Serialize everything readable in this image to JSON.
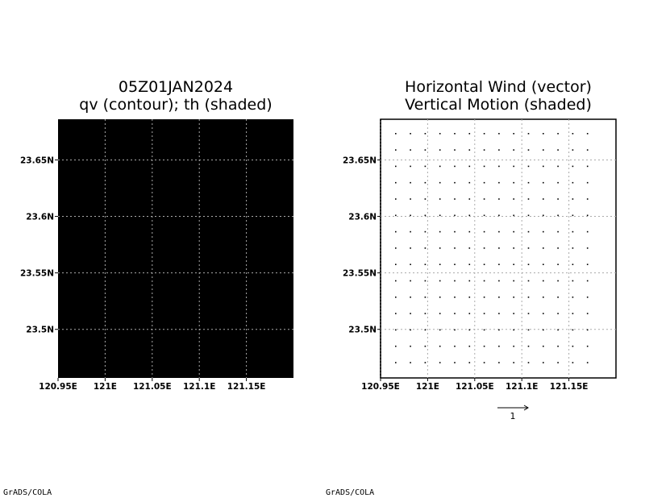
{
  "chart_data": [
    {
      "type": "heatmap",
      "title": "05Z01JAN2024",
      "subtitle": "qv (contour); th (shaded)",
      "xlabel": "",
      "ylabel": "",
      "x_ticks": [
        "120.95E",
        "121E",
        "121.05E",
        "121.1E",
        "121.15E"
      ],
      "x_tick_values": [
        120.95,
        121.0,
        121.05,
        121.1,
        121.15
      ],
      "y_ticks": [
        "23.5N",
        "23.55N",
        "23.6N",
        "23.65N"
      ],
      "y_tick_values": [
        23.5,
        23.55,
        23.6,
        23.65
      ],
      "xlim": [
        120.95,
        121.2
      ],
      "ylim": [
        23.457,
        23.686
      ],
      "grid": true,
      "fill_color": "#000000",
      "grid_color": "#aaaaaa"
    },
    {
      "type": "scatter",
      "title": "Horizontal Wind (vector)",
      "subtitle": "Vertical Motion (shaded)",
      "xlabel": "",
      "ylabel": "",
      "x_ticks": [
        "120.95E",
        "121E",
        "121.05E",
        "121.1E",
        "121.15E"
      ],
      "x_tick_values": [
        120.95,
        121.0,
        121.05,
        121.1,
        121.15
      ],
      "y_ticks": [
        "23.5N",
        "23.55N",
        "23.6N",
        "23.65N"
      ],
      "y_tick_values": [
        23.5,
        23.55,
        23.6,
        23.65
      ],
      "xlim": [
        120.95,
        121.2
      ],
      "ylim": [
        23.457,
        23.686
      ],
      "grid": true,
      "vector_columns": 14,
      "vector_rows": 15,
      "vector_magnitude": 0,
      "reference_vector_label": "1",
      "grid_color": "#aaaaaa"
    }
  ],
  "footer": {
    "left_credit": "GrADS/COLA",
    "right_credit": "GrADS/COLA"
  }
}
